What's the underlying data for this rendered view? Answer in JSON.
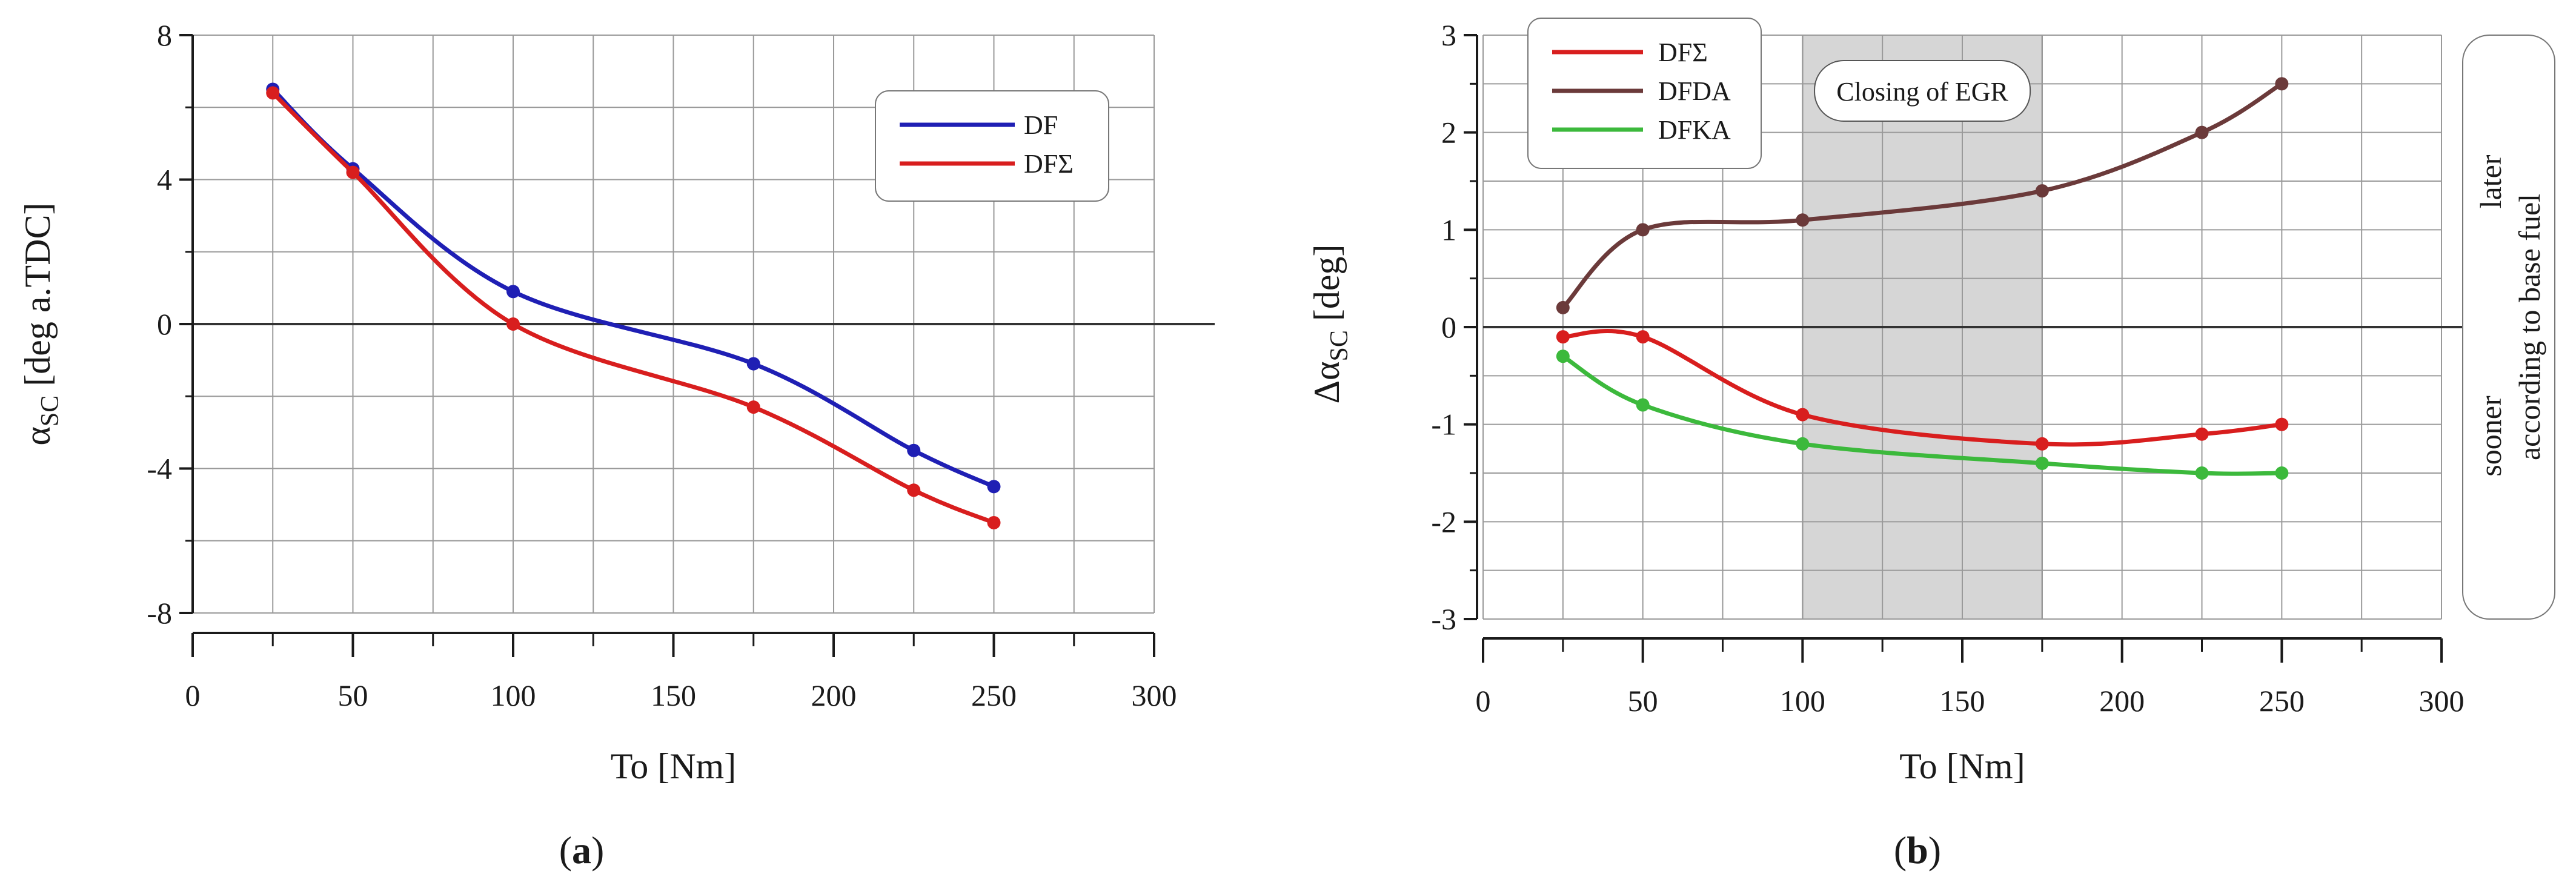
{
  "chart_data": [
    {
      "type": "line",
      "panel_label": "a",
      "xlabel": "To [Nm]",
      "ylabel": "α_SC [deg a.TDC]",
      "ylabel_base": "α",
      "ylabel_sub": "SC",
      "ylabel_rest": " [deg a.TDC]",
      "xlim": [
        0,
        300
      ],
      "ylim": [
        -8,
        8
      ],
      "xticks": [
        "0",
        "50",
        "100",
        "150",
        "200",
        "250",
        "300"
      ],
      "yticks": [
        "8",
        "4",
        "0",
        "-4",
        "-8"
      ],
      "grid": true,
      "legend_position": "top-right",
      "series": [
        {
          "name": "DF",
          "color": "#1f1fb4",
          "x": [
            25,
            50,
            100,
            175,
            225,
            250
          ],
          "y": [
            6.5,
            4.3,
            0.9,
            -1.1,
            -3.5,
            -4.5
          ]
        },
        {
          "name": "DFΣ",
          "color": "#d81e1e",
          "x": [
            25,
            50,
            100,
            175,
            225,
            250
          ],
          "y": [
            6.4,
            4.2,
            0.0,
            -2.3,
            -4.6,
            -5.5
          ]
        }
      ]
    },
    {
      "type": "line",
      "panel_label": "b",
      "xlabel": "To [Nm]",
      "ylabel": "Δα_SC [deg]",
      "ylabel_base": "Δα",
      "ylabel_sub": "SC",
      "ylabel_rest": " [deg]",
      "xlim": [
        0,
        300
      ],
      "ylim": [
        -3,
        3
      ],
      "xticks": [
        "0",
        "50",
        "100",
        "150",
        "200",
        "250",
        "300"
      ],
      "yticks": [
        "3",
        "2",
        "1",
        "0",
        "-1",
        "-2",
        "-3"
      ],
      "grid": true,
      "legend_position": "top-left",
      "shaded_region": {
        "x_from": 100,
        "x_to": 175,
        "label": "Closing of EGR"
      },
      "side_annotation": {
        "upper": "later",
        "lower": "sooner",
        "basis": "according to base fuel"
      },
      "series": [
        {
          "name": "DFΣ",
          "color": "#d81e1e",
          "x": [
            25,
            50,
            100,
            175,
            225,
            250
          ],
          "y": [
            -0.1,
            -0.1,
            -0.9,
            -1.2,
            -1.1,
            -1.0
          ]
        },
        {
          "name": "DFDA",
          "color": "#6b3a3a",
          "x": [
            25,
            50,
            100,
            175,
            225,
            250
          ],
          "y": [
            0.2,
            1.0,
            1.1,
            1.4,
            2.0,
            2.5
          ]
        },
        {
          "name": "DFKA",
          "color": "#3cb93c",
          "x": [
            25,
            50,
            100,
            175,
            225,
            250
          ],
          "y": [
            -0.3,
            -0.8,
            -1.2,
            -1.4,
            -1.5,
            -1.5
          ]
        }
      ]
    }
  ]
}
